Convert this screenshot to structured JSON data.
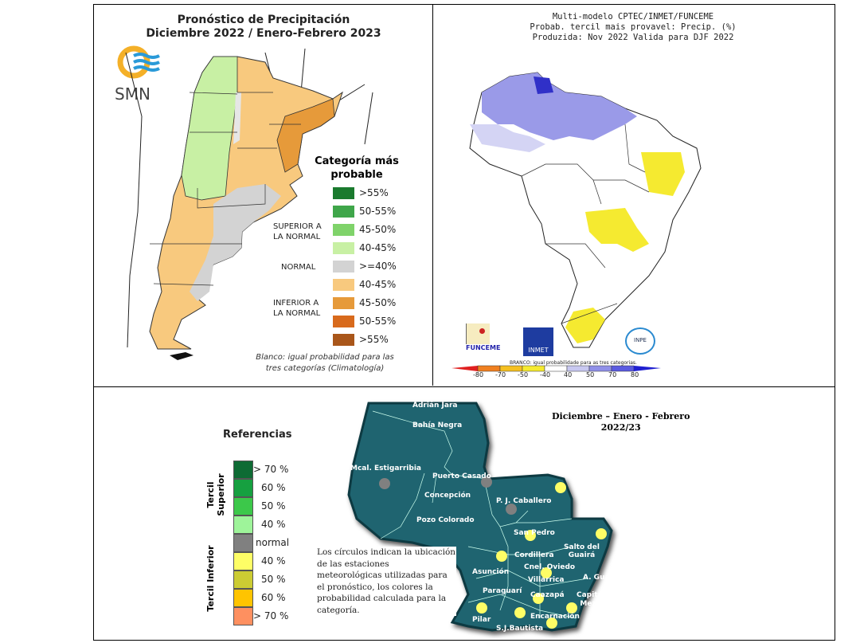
{
  "argentina": {
    "title_line1": "Pronóstico de Precipitación",
    "title_line2": "Diciembre 2022 / Enero-Febrero 2023",
    "logo_text": "SMN",
    "legend_title": "Categoría más probable",
    "legend": [
      {
        "label": ">55%",
        "color": "#1a7a2e"
      },
      {
        "label": "50-55%",
        "color": "#3fa64a"
      },
      {
        "label": "45-50%",
        "color": "#7fd36a"
      },
      {
        "label": "40-45%",
        "color": "#c8f0a4"
      },
      {
        "label": ">=40%",
        "color": "#d3d3d3"
      },
      {
        "label": "40-45%",
        "color": "#f8c97e"
      },
      {
        "label": "45-50%",
        "color": "#e69a3a"
      },
      {
        "label": "50-55%",
        "color": "#d86a1c"
      },
      {
        "label": ">55%",
        "color": "#a9561a"
      }
    ],
    "categories": {
      "superior": "SUPERIOR A LA NORMAL",
      "normal": "NORMAL",
      "inferior": "INFERIOR A LA NORMAL"
    },
    "note": "Blanco: igual probabilidad para las tres categorías (Climatología)"
  },
  "brazil": {
    "title_line1": "Multi-modelo CPTEC/INMET/FUNCEME",
    "title_line2": "Probab. tercil mais provavel: Precip. (%)",
    "title_line3": "Produzida: Nov 2022  Valida para DJF 2022",
    "logos": [
      "FUNCEME",
      "INMET",
      "INPE"
    ],
    "colorbar_note": "BRANCO: igual probabilidade para as tres categorias.",
    "colorbar_ticks": [
      "-80",
      "-70",
      "-50",
      "-40",
      "40",
      "50",
      "70",
      "80"
    ],
    "colorbar_colors": [
      "#e02020",
      "#f08020",
      "#f5c020",
      "#f5ea30",
      "#ffffff",
      "#c8c8f0",
      "#9090e8",
      "#5a5ae0",
      "#2020d0"
    ]
  },
  "paraguay": {
    "title_line1": "Diciembre – Enero - Febrero",
    "title_line2": "2022/23",
    "references_title": "Referencias",
    "tercil_superior": "Tercil Superior",
    "tercil_inferior": "Tercil Inferior",
    "references": [
      {
        "label": "> 70 %",
        "color": "#0e6b34"
      },
      {
        "label": "60 %",
        "color": "#16a040"
      },
      {
        "label": "50 %",
        "color": "#3cc84a"
      },
      {
        "label": "40 %",
        "color": "#9ef49a"
      },
      {
        "label": "normal",
        "color": "#808080"
      },
      {
        "label": "40  %",
        "color": "#fefe66"
      },
      {
        "label": "50  %",
        "color": "#cccc33"
      },
      {
        "label": "60 %",
        "color": "#ffc400"
      },
      {
        "label": "> 70 %",
        "color": "#fe9060"
      }
    ],
    "note": "Los círculos indican la ubicación de las estaciones meteorológicas utilizadas para el pronóstico, los colores la probabilidad calculada para la categoría.",
    "stations": [
      "Adrián Jara",
      "Bahía Negra",
      "Mcal. Estigarribia",
      "Puerto Casado",
      "Concepción",
      "P. J. Caballero",
      "Pozo Colorado",
      "San Pedro",
      "Salto del Guairá",
      "Cordillera",
      "Cnel. Oviedo",
      "Asunción",
      "A. Guaraní",
      "Villarrica",
      "Paraguarí",
      "Caazapá",
      "Capitán Meza",
      "Pilar",
      "Encarnación",
      "S.J.Bautista"
    ]
  }
}
